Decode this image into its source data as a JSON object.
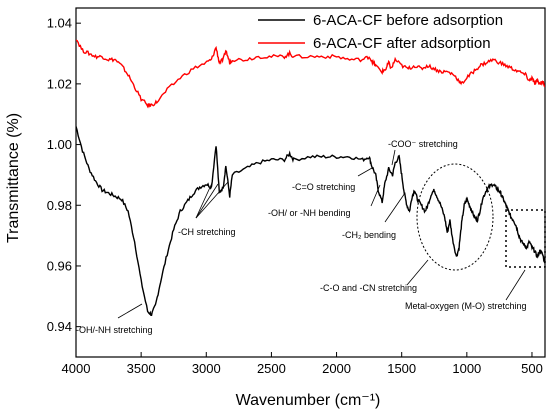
{
  "chart_data": {
    "type": "line",
    "xlabel": "Wavenumber (cm⁻¹)",
    "ylabel": "Transmittance (%)",
    "xlim": [
      4000,
      400
    ],
    "x_reversed": true,
    "ylim": [
      0.93,
      1.045
    ],
    "x_ticks": [
      4000,
      3500,
      3000,
      2500,
      2000,
      1500,
      1000,
      500
    ],
    "x_tick_labels": [
      "4000",
      "3500",
      "3000",
      "2500",
      "2000",
      "1500",
      "1000",
      "500"
    ],
    "y_ticks": [
      0.94,
      0.96,
      0.98,
      1.0,
      1.02,
      1.04
    ],
    "y_tick_labels": [
      "0.94",
      "0.96",
      "0.98",
      "1.00",
      "1.02",
      "1.04"
    ],
    "grid": false,
    "legend_position": "top-right",
    "series": [
      {
        "name": "6-ACA-CF before adsorption",
        "color": "#000000",
        "points": [
          [
            4000,
            1.006
          ],
          [
            3950,
            0.998
          ],
          [
            3900,
            0.992
          ],
          [
            3850,
            0.988
          ],
          [
            3800,
            0.985
          ],
          [
            3750,
            0.984
          ],
          [
            3700,
            0.983
          ],
          [
            3650,
            0.982
          ],
          [
            3600,
            0.978
          ],
          [
            3550,
            0.968
          ],
          [
            3500,
            0.955
          ],
          [
            3450,
            0.945
          ],
          [
            3420,
            0.944
          ],
          [
            3390,
            0.947
          ],
          [
            3350,
            0.955
          ],
          [
            3300,
            0.964
          ],
          [
            3250,
            0.972
          ],
          [
            3200,
            0.978
          ],
          [
            3150,
            0.981
          ],
          [
            3100,
            0.984
          ],
          [
            3050,
            0.986
          ],
          [
            3000,
            0.987
          ],
          [
            2960,
            0.986
          ],
          [
            2925,
            1.0
          ],
          [
            2900,
            0.984
          ],
          [
            2870,
            0.986
          ],
          [
            2850,
            0.993
          ],
          [
            2820,
            0.983
          ],
          [
            2800,
            0.99
          ],
          [
            2700,
            0.992
          ],
          [
            2600,
            0.994
          ],
          [
            2500,
            0.995
          ],
          [
            2400,
            0.995
          ],
          [
            2360,
            0.997
          ],
          [
            2330,
            0.995
          ],
          [
            2200,
            0.996
          ],
          [
            2100,
            0.996
          ],
          [
            2000,
            0.996
          ],
          [
            1900,
            0.996
          ],
          [
            1800,
            0.995
          ],
          [
            1750,
            0.996
          ],
          [
            1730,
            0.993
          ],
          [
            1700,
            0.99
          ],
          [
            1680,
            0.985
          ],
          [
            1650,
            0.981
          ],
          [
            1630,
            0.987
          ],
          [
            1600,
            0.992
          ],
          [
            1570,
            0.99
          ],
          [
            1550,
            0.994
          ],
          [
            1520,
            0.996
          ],
          [
            1500,
            0.99
          ],
          [
            1480,
            0.984
          ],
          [
            1460,
            0.98
          ],
          [
            1440,
            0.978
          ],
          [
            1420,
            0.983
          ],
          [
            1400,
            0.985
          ],
          [
            1380,
            0.982
          ],
          [
            1350,
            0.98
          ],
          [
            1320,
            0.978
          ],
          [
            1300,
            0.98
          ],
          [
            1270,
            0.984
          ],
          [
            1250,
            0.985
          ],
          [
            1230,
            0.983
          ],
          [
            1200,
            0.98
          ],
          [
            1170,
            0.976
          ],
          [
            1150,
            0.971
          ],
          [
            1130,
            0.975
          ],
          [
            1110,
            0.969
          ],
          [
            1080,
            0.963
          ],
          [
            1060,
            0.966
          ],
          [
            1040,
            0.974
          ],
          [
            1020,
            0.98
          ],
          [
            1000,
            0.982
          ],
          [
            980,
            0.98
          ],
          [
            960,
            0.978
          ],
          [
            940,
            0.976
          ],
          [
            920,
            0.975
          ],
          [
            900,
            0.978
          ],
          [
            880,
            0.982
          ],
          [
            850,
            0.985
          ],
          [
            830,
            0.986
          ],
          [
            800,
            0.987
          ],
          [
            780,
            0.986
          ],
          [
            760,
            0.985
          ],
          [
            740,
            0.984
          ],
          [
            720,
            0.982
          ],
          [
            700,
            0.98
          ],
          [
            680,
            0.978
          ],
          [
            660,
            0.976
          ],
          [
            640,
            0.975
          ],
          [
            620,
            0.973
          ],
          [
            600,
            0.97
          ],
          [
            580,
            0.968
          ],
          [
            560,
            0.967
          ],
          [
            540,
            0.966
          ],
          [
            520,
            0.968
          ],
          [
            500,
            0.966
          ],
          [
            480,
            0.965
          ],
          [
            460,
            0.963
          ],
          [
            440,
            0.965
          ],
          [
            420,
            0.964
          ],
          [
            400,
            0.961
          ]
        ]
      },
      {
        "name": "6-ACA-CF after adsorption",
        "color": "#ff0000",
        "points": [
          [
            4000,
            1.035
          ],
          [
            3950,
            1.031
          ],
          [
            3900,
            1.03
          ],
          [
            3850,
            1.029
          ],
          [
            3800,
            1.029
          ],
          [
            3750,
            1.028
          ],
          [
            3700,
            1.028
          ],
          [
            3650,
            1.026
          ],
          [
            3600,
            1.023
          ],
          [
            3550,
            1.019
          ],
          [
            3500,
            1.015
          ],
          [
            3450,
            1.013
          ],
          [
            3420,
            1.013
          ],
          [
            3380,
            1.014
          ],
          [
            3300,
            1.018
          ],
          [
            3200,
            1.022
          ],
          [
            3100,
            1.025
          ],
          [
            3000,
            1.027
          ],
          [
            2960,
            1.028
          ],
          [
            2925,
            1.032
          ],
          [
            2900,
            1.027
          ],
          [
            2870,
            1.028
          ],
          [
            2850,
            1.031
          ],
          [
            2820,
            1.027
          ],
          [
            2800,
            1.028
          ],
          [
            2700,
            1.028
          ],
          [
            2600,
            1.029
          ],
          [
            2500,
            1.029
          ],
          [
            2400,
            1.029
          ],
          [
            2360,
            1.03
          ],
          [
            2330,
            1.029
          ],
          [
            2200,
            1.029
          ],
          [
            2100,
            1.029
          ],
          [
            2000,
            1.029
          ],
          [
            1900,
            1.028
          ],
          [
            1800,
            1.028
          ],
          [
            1750,
            1.029
          ],
          [
            1720,
            1.027
          ],
          [
            1700,
            1.026
          ],
          [
            1650,
            1.024
          ],
          [
            1620,
            1.025
          ],
          [
            1600,
            1.027
          ],
          [
            1580,
            1.025
          ],
          [
            1550,
            1.028
          ],
          [
            1500,
            1.026
          ],
          [
            1450,
            1.025
          ],
          [
            1400,
            1.026
          ],
          [
            1350,
            1.025
          ],
          [
            1300,
            1.026
          ],
          [
            1250,
            1.025
          ],
          [
            1200,
            1.024
          ],
          [
            1150,
            1.024
          ],
          [
            1100,
            1.023
          ],
          [
            1060,
            1.021
          ],
          [
            1040,
            1.02
          ],
          [
            1000,
            1.022
          ],
          [
            950,
            1.024
          ],
          [
            900,
            1.026
          ],
          [
            850,
            1.027
          ],
          [
            800,
            1.028
          ],
          [
            750,
            1.027
          ],
          [
            700,
            1.026
          ],
          [
            650,
            1.025
          ],
          [
            600,
            1.024
          ],
          [
            550,
            1.023
          ],
          [
            520,
            1.021
          ],
          [
            500,
            1.022
          ],
          [
            480,
            1.02
          ],
          [
            460,
            1.021
          ],
          [
            440,
            1.02
          ],
          [
            420,
            1.021
          ],
          [
            400,
            1.019
          ]
        ]
      }
    ],
    "annotations": [
      {
        "text": "-OH/-NH stretching",
        "x": 3420,
        "y": 0.944
      },
      {
        "text": "-CH stretching",
        "x": 2920,
        "y": 0.985
      },
      {
        "text": "-C=O stretching",
        "x": 1650,
        "y": 0.981
      },
      {
        "text": "-COO⁻ stretching",
        "x": 1520,
        "y": 0.996
      },
      {
        "text": "-OH/ or -NH bending",
        "x": 1640,
        "y": 0.983
      },
      {
        "text": "-CH₂ bending",
        "x": 1440,
        "y": 0.978
      },
      {
        "text": "-C-O and -CN stretching",
        "x": 1100,
        "y": 0.97
      },
      {
        "text": "Metal-oxygen (M-O) stretching",
        "x": 600,
        "y": 0.968
      }
    ]
  }
}
